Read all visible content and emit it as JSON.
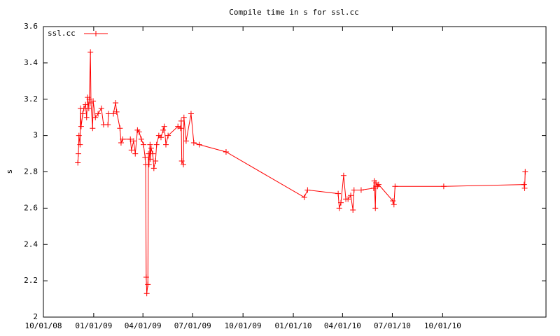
{
  "chart_data": {
    "type": "line",
    "title": "Compile time in s for ssl.cc",
    "y_label": "s",
    "legend": "top-left",
    "grid": false,
    "xlim": [
      "2008-10-01",
      "2011-04-08"
    ],
    "xticks": [
      {
        "value": "2008-10-01",
        "label": "10/01/08"
      },
      {
        "value": "2009-01-01",
        "label": "01/01/09"
      },
      {
        "value": "2009-04-01",
        "label": "04/01/09"
      },
      {
        "value": "2009-07-01",
        "label": "07/01/09"
      },
      {
        "value": "2009-10-01",
        "label": "10/01/09"
      },
      {
        "value": "2010-01-01",
        "label": "01/01/10"
      },
      {
        "value": "2010-04-01",
        "label": "04/01/10"
      },
      {
        "value": "2010-07-01",
        "label": "07/01/10"
      },
      {
        "value": "2010-10-01",
        "label": "10/01/10"
      }
    ],
    "ylim": [
      2,
      3.6
    ],
    "yticks": [
      2,
      2.2,
      2.4,
      2.6,
      2.8,
      3,
      3.2,
      3.4,
      3.6
    ],
    "x": [
      "2008-12-03",
      "2008-12-04",
      "2008-12-05",
      "2008-12-07",
      "2008-12-08",
      "2008-12-09",
      "2008-12-12",
      "2008-12-14",
      "2008-12-17",
      "2008-12-19",
      "2008-12-21",
      "2008-12-23",
      "2008-12-24",
      "2008-12-26",
      "2008-12-27",
      "2008-12-30",
      "2008-12-31",
      "2009-01-04",
      "2009-01-09",
      "2009-01-15",
      "2009-01-19",
      "2009-01-27",
      "2009-01-28",
      "2009-02-06",
      "2009-02-10",
      "2009-02-12",
      "2009-02-18",
      "2009-02-20",
      "2009-02-23",
      "2009-03-09",
      "2009-03-11",
      "2009-03-15",
      "2009-03-18",
      "2009-03-22",
      "2009-03-25",
      "2009-03-29",
      "2009-04-02",
      "2009-04-05",
      "2009-04-06",
      "2009-04-07",
      "2009-04-08",
      "2009-04-10",
      "2009-04-11",
      "2009-04-12",
      "2009-04-14",
      "2009-04-15",
      "2009-04-16",
      "2009-04-19",
      "2009-04-21",
      "2009-04-24",
      "2009-04-26",
      "2009-04-30",
      "2009-05-04",
      "2009-05-08",
      "2009-05-10",
      "2009-05-13",
      "2009-05-17",
      "2009-06-04",
      "2009-06-09",
      "2009-06-10",
      "2009-06-11",
      "2009-06-14",
      "2009-06-15",
      "2009-06-19",
      "2009-06-28",
      "2009-07-03",
      "2009-07-13",
      "2009-08-31",
      "2010-01-21",
      "2010-01-27",
      "2010-03-24",
      "2010-03-26",
      "2010-03-29",
      "2010-04-03",
      "2010-04-07",
      "2010-04-11",
      "2010-04-16",
      "2010-04-20",
      "2010-04-22",
      "2010-05-05",
      "2010-05-28",
      "2010-05-29",
      "2010-05-31",
      "2010-06-01",
      "2010-06-04",
      "2010-06-06",
      "2010-07-02",
      "2010-07-04",
      "2010-07-06",
      "2010-10-03",
      "2011-02-27",
      "2011-02-28",
      "2011-03-01"
    ],
    "series": [
      {
        "name": "ssl.cc",
        "color": "#ff0000",
        "values": [
          2.85,
          2.9,
          3.0,
          2.95,
          3.15,
          3.05,
          3.12,
          3.15,
          3.17,
          3.1,
          3.21,
          3.15,
          3.2,
          3.46,
          3.18,
          3.04,
          3.19,
          3.1,
          3.12,
          3.15,
          3.06,
          3.06,
          3.12,
          3.12,
          3.18,
          3.13,
          3.04,
          2.96,
          2.98,
          2.98,
          2.92,
          2.97,
          2.9,
          3.03,
          3.02,
          2.98,
          2.95,
          2.88,
          2.84,
          2.22,
          2.13,
          2.18,
          2.9,
          2.84,
          2.95,
          2.87,
          2.93,
          2.9,
          2.82,
          2.86,
          2.95,
          3.0,
          2.99,
          3.03,
          3.05,
          2.95,
          3.0,
          3.05,
          3.04,
          3.08,
          2.86,
          2.84,
          3.1,
          2.97,
          3.12,
          2.96,
          2.95,
          2.91,
          2.66,
          2.7,
          2.68,
          2.6,
          2.63,
          2.78,
          2.65,
          2.65,
          2.67,
          2.59,
          2.7,
          2.7,
          2.71,
          2.75,
          2.6,
          2.74,
          2.72,
          2.73,
          2.64,
          2.62,
          2.72,
          2.72,
          2.73,
          2.71,
          2.8
        ]
      }
    ]
  }
}
